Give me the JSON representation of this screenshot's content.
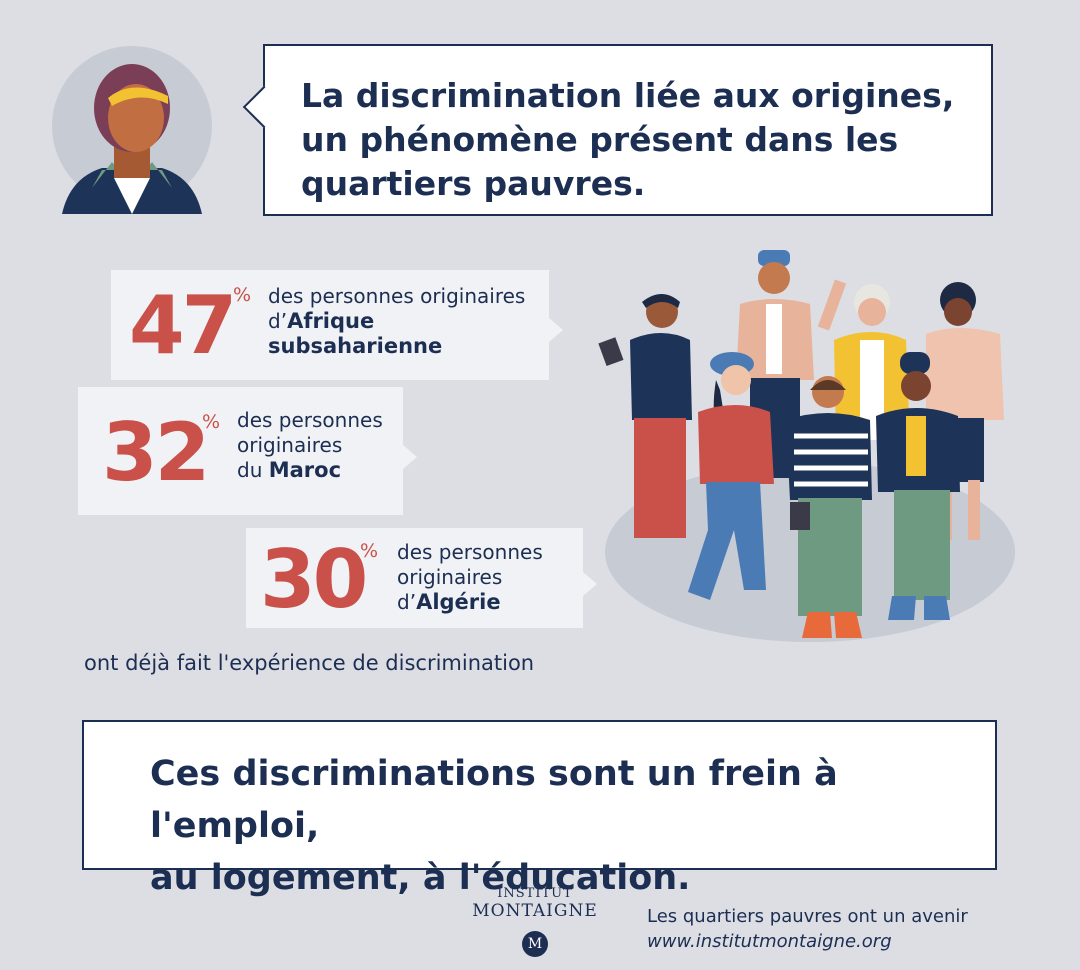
{
  "header": {
    "title_lines": [
      "La discrimination liée aux origines,",
      "un phénomène présent dans les",
      "quartiers pauvres."
    ]
  },
  "stats": [
    {
      "value": "47",
      "unit": "%",
      "line1": "des personnes originaires",
      "line2_prefix": "d’",
      "line2_bold": "Afrique",
      "line3_bold": "subsaharienne"
    },
    {
      "value": "32",
      "unit": "%",
      "line1": "des personnes",
      "line2": "originaires",
      "line3_prefix": "du ",
      "line3_bold": "Maroc"
    },
    {
      "value": "30",
      "unit": "%",
      "line1": "des personnes",
      "line2": "originaires",
      "line3_prefix": "d’",
      "line3_bold": "Algérie"
    }
  ],
  "footnote": "ont déjà fait l'expérience de discrimination",
  "conclusion": {
    "line1": "Ces discriminations sont un frein à l'emploi,",
    "line2": "au logement, à l'éducation."
  },
  "logo": {
    "line1": "INSTITUT",
    "line2": "MONTAIGNE",
    "monogram": "M"
  },
  "tagline": {
    "text": "Les quartiers pauvres ont un avenir",
    "url": "www.institutmontaigne.org"
  },
  "colors": {
    "navy": "#1c2e52",
    "accent_red": "#c9514a",
    "background": "#dcdee4",
    "panel": "#f1f2f5"
  }
}
